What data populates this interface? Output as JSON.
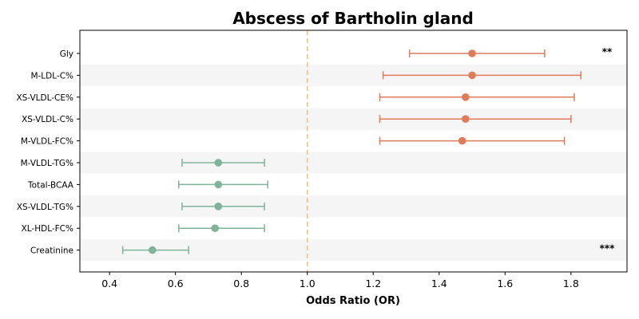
{
  "chart_data": {
    "type": "forest",
    "title": "Abscess of Bartholin gland",
    "xlabel": "Odds Ratio (OR)",
    "ylabel": "",
    "xlim": [
      0.31,
      1.97
    ],
    "xticks": [
      0.4,
      0.6,
      0.8,
      1.0,
      1.2,
      1.4,
      1.6,
      1.8
    ],
    "xtick_labels": [
      "0.4",
      "0.6",
      "0.8",
      "1.0",
      "1.2",
      "1.4",
      "1.6",
      "1.8"
    ],
    "reference_line": 1.0,
    "grid": false,
    "colors": {
      "risk": "#e07b5a",
      "protective": "#7fb39a",
      "reference": "#f0c27b",
      "band": "#f5f5f5"
    },
    "points": [
      {
        "label": "Gly",
        "or": 1.5,
        "ci_low": 1.31,
        "ci_high": 1.72,
        "significance": "**"
      },
      {
        "label": "M-LDL-C%",
        "or": 1.5,
        "ci_low": 1.23,
        "ci_high": 1.83,
        "significance": ""
      },
      {
        "label": "XS-VLDL-CE%",
        "or": 1.48,
        "ci_low": 1.22,
        "ci_high": 1.81,
        "significance": ""
      },
      {
        "label": "XS-VLDL-C%",
        "or": 1.48,
        "ci_low": 1.22,
        "ci_high": 1.8,
        "significance": ""
      },
      {
        "label": "M-VLDL-FC%",
        "or": 1.47,
        "ci_low": 1.22,
        "ci_high": 1.78,
        "significance": ""
      },
      {
        "label": "M-VLDL-TG%",
        "or": 0.73,
        "ci_low": 0.62,
        "ci_high": 0.87,
        "significance": ""
      },
      {
        "label": "Total-BCAA",
        "or": 0.73,
        "ci_low": 0.61,
        "ci_high": 0.88,
        "significance": ""
      },
      {
        "label": "XS-VLDL-TG%",
        "or": 0.73,
        "ci_low": 0.62,
        "ci_high": 0.87,
        "significance": ""
      },
      {
        "label": "XL-HDL-FC%",
        "or": 0.72,
        "ci_low": 0.61,
        "ci_high": 0.87,
        "significance": ""
      },
      {
        "label": "Creatinine",
        "or": 0.53,
        "ci_low": 0.44,
        "ci_high": 0.64,
        "significance": "***"
      }
    ]
  }
}
